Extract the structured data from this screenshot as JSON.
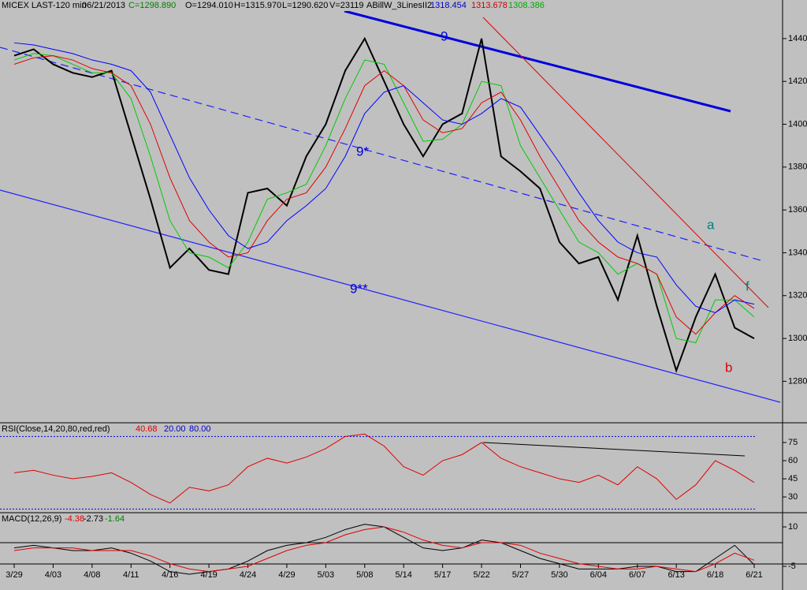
{
  "chart_data": [
    {
      "type": "line",
      "header": {
        "symbol": "MICEX LAST-120 min",
        "date": "06/21/2013",
        "close": "C=1298.890",
        "open": "O=1294.010",
        "high": "H=1315.970",
        "low": "L=1290.620",
        "volume": "V=23119",
        "study": "ABillW_3LinesII2",
        "study_values": [
          "1318.454",
          "1313.678",
          "1308.386"
        ]
      },
      "annotations": [
        "9",
        "9*",
        "9**",
        "a",
        "b",
        "f"
      ],
      "categories": [
        "3/29",
        null,
        "4/03",
        null,
        "4/08",
        null,
        "4/11",
        null,
        "4/16",
        null,
        "4/19",
        null,
        "4/24",
        null,
        "4/29",
        null,
        "5/03",
        null,
        "5/08",
        null,
        "5/14",
        null,
        "5/17",
        null,
        "5/22",
        null,
        "5/27",
        null,
        "5/30",
        null,
        "6/04",
        null,
        "6/07",
        null,
        "6/13",
        null,
        "6/18",
        null,
        "6/21"
      ],
      "series": [
        {
          "color": "#000000",
          "values": [
            1432,
            1435,
            1428,
            1424,
            1422,
            1425,
            1395,
            1365,
            1333,
            1342,
            1332,
            1330,
            1368,
            1370,
            1362,
            1385,
            1400,
            1425,
            1440,
            1420,
            1400,
            1385,
            1400,
            1405,
            1440,
            1385,
            1378,
            1370,
            1345,
            1335,
            1338,
            1318,
            1348,
            1315,
            1285,
            1310,
            1330,
            1305,
            1300
          ]
        },
        {
          "color": "#00cc00",
          "values": [
            1430,
            1433,
            1432,
            1428,
            1424,
            1424,
            1412,
            1385,
            1355,
            1340,
            1338,
            1333,
            1345,
            1365,
            1368,
            1372,
            1390,
            1412,
            1430,
            1428,
            1410,
            1392,
            1393,
            1400,
            1420,
            1418,
            1390,
            1375,
            1360,
            1345,
            1340,
            1330,
            1335,
            1330,
            1300,
            1298,
            1318,
            1318,
            1310
          ]
        },
        {
          "color": "#e00000",
          "values": [
            1428,
            1431,
            1432,
            1430,
            1426,
            1424,
            1418,
            1400,
            1375,
            1355,
            1345,
            1338,
            1340,
            1355,
            1365,
            1368,
            1380,
            1398,
            1418,
            1425,
            1418,
            1402,
            1396,
            1398,
            1410,
            1415,
            1402,
            1385,
            1370,
            1355,
            1345,
            1338,
            1335,
            1330,
            1310,
            1302,
            1312,
            1320,
            1314
          ]
        },
        {
          "color": "#0000ff",
          "values": [
            1438,
            1437,
            1435,
            1433,
            1430,
            1428,
            1425,
            1415,
            1395,
            1375,
            1360,
            1348,
            1342,
            1345,
            1355,
            1362,
            1370,
            1385,
            1405,
            1415,
            1418,
            1410,
            1402,
            1400,
            1405,
            1412,
            1408,
            1395,
            1382,
            1368,
            1355,
            1345,
            1340,
            1338,
            1325,
            1315,
            1312,
            1318,
            1316
          ]
        }
      ],
      "ylim": [
        1261,
        1458
      ],
      "yticks": [
        1280,
        1300,
        1320,
        1340,
        1360,
        1380,
        1400,
        1420,
        1440
      ]
    },
    {
      "type": "line",
      "title": "RSI(Close,14,20,80,red,red)",
      "readout": "40.68",
      "levels": [
        {
          "value": 20,
          "label": "20.00"
        },
        {
          "value": 80,
          "label": "80.00"
        }
      ],
      "series": [
        {
          "color": "#e00000",
          "values": [
            50,
            52,
            48,
            45,
            47,
            50,
            42,
            32,
            25,
            38,
            35,
            40,
            55,
            62,
            58,
            63,
            70,
            80,
            82,
            72,
            55,
            48,
            60,
            65,
            75,
            62,
            55,
            50,
            45,
            42,
            48,
            40,
            55,
            45,
            28,
            40,
            60,
            52,
            42
          ]
        }
      ],
      "ylim": [
        17,
        90
      ],
      "yticks": [
        30,
        45,
        60,
        75
      ]
    },
    {
      "type": "line",
      "title": "MACD(12,26,9)",
      "readout": [
        "-4.38",
        "-2.73",
        "-1.64"
      ],
      "series": [
        {
          "color": "#000000",
          "values": [
            2,
            3,
            2,
            1,
            1,
            2,
            0,
            -3,
            -7,
            -8,
            -7,
            -6,
            -3,
            1,
            3,
            4,
            6,
            9,
            11,
            10,
            6,
            2,
            1,
            2,
            5,
            4,
            1,
            -2,
            -4,
            -6,
            -6,
            -6,
            -5,
            -5,
            -7,
            -7,
            -2,
            3,
            -4.4
          ]
        },
        {
          "color": "#e00000",
          "values": [
            1,
            2,
            2,
            2,
            1,
            1,
            1,
            -1,
            -4,
            -6,
            -7,
            -6,
            -5,
            -2,
            1,
            3,
            4,
            7,
            9,
            10,
            8,
            5,
            3,
            2,
            4,
            4,
            3,
            0,
            -2,
            -4,
            -5,
            -6,
            -6,
            -5,
            -6,
            -7,
            -4,
            0,
            -2.7
          ]
        }
      ],
      "ylim": [
        -8.6,
        13.9
      ],
      "yticks": [
        10,
        -5
      ]
    }
  ]
}
